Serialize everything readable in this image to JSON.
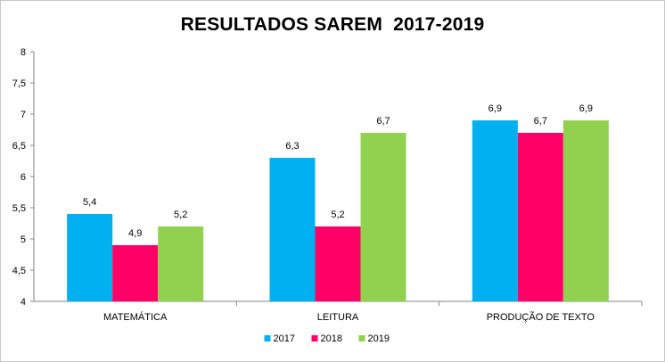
{
  "chart_data": {
    "type": "bar",
    "title": "RESULTADOS SAREM  2017-2019",
    "xlabel": "",
    "ylabel": "",
    "categories": [
      "MATEMÁTICA",
      "LEITURA",
      "PRODUÇÃO DE TEXTO"
    ],
    "series": [
      {
        "name": "2017",
        "color": "#00B0F0",
        "values": [
          5.4,
          6.3,
          6.9
        ],
        "labels": [
          "5,4",
          "6,3",
          "6,9"
        ]
      },
      {
        "name": "2018",
        "color": "#FF0066",
        "values": [
          4.9,
          5.2,
          6.7
        ],
        "labels": [
          "4,9",
          "5,2",
          "6,7"
        ]
      },
      {
        "name": "2019",
        "color": "#92D050",
        "values": [
          5.2,
          6.7,
          6.9
        ],
        "labels": [
          "5,2",
          "6,7",
          "6,9"
        ]
      }
    ],
    "ylim": [
      4,
      8
    ],
    "yticks": [
      4,
      4.5,
      5,
      5.5,
      6,
      6.5,
      7,
      7.5,
      8
    ],
    "ytick_labels": [
      "4",
      "4,5",
      "5",
      "5,5",
      "6",
      "6,5",
      "7",
      "7,5",
      "8"
    ],
    "grid": false,
    "legend": "bottom"
  }
}
